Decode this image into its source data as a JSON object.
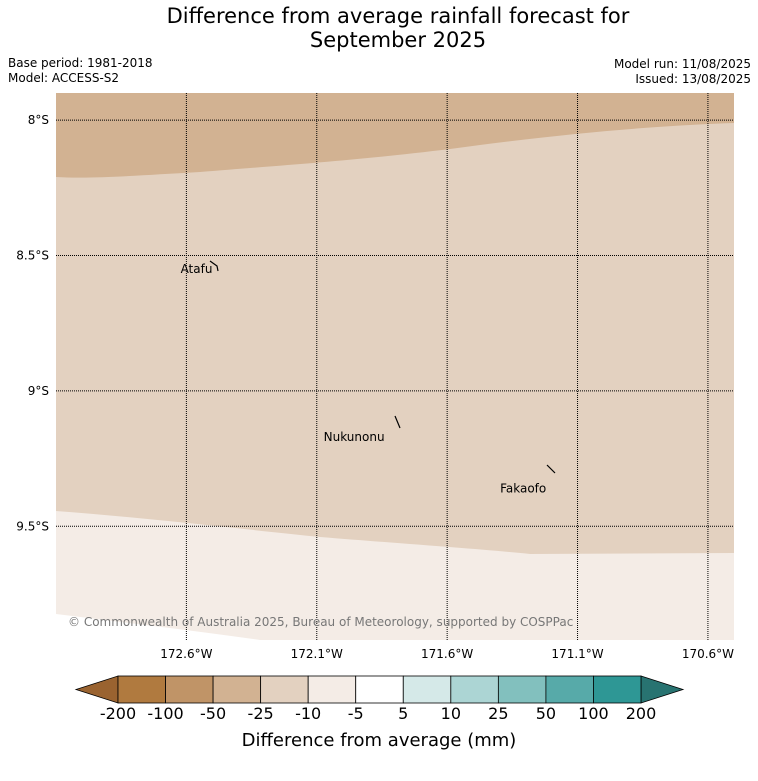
{
  "title": {
    "line1": "Difference from average rainfall forecast for",
    "line2": "September 2025"
  },
  "meta": {
    "base_period": "Base period: 1981-2018",
    "model": "Model: ACCESS-S2",
    "model_run": "Model run: 11/08/2025",
    "issued": "Issued: 13/08/2025"
  },
  "map": {
    "lat_range": [
      -9.92,
      -7.9
    ],
    "lon_range": [
      -173.1,
      -170.5
    ],
    "lat_ticks": [
      {
        "value": -8.0,
        "label": "8°S"
      },
      {
        "value": -8.5,
        "label": "8.5°S"
      },
      {
        "value": -9.0,
        "label": "9°S"
      },
      {
        "value": -9.5,
        "label": "9.5°S"
      }
    ],
    "lon_ticks": [
      {
        "value": -172.6,
        "label": "172.6°W"
      },
      {
        "value": -172.1,
        "label": "172.1°W"
      },
      {
        "value": -171.6,
        "label": "171.6°W"
      },
      {
        "value": -171.1,
        "label": "171.1°W"
      },
      {
        "value": -170.6,
        "label": "170.6°W"
      }
    ],
    "places": [
      {
        "name": "Atafu",
        "lon": -172.5,
        "lat": -8.55
      },
      {
        "name": "Nukunonu",
        "lon": -171.84,
        "lat": -9.17
      },
      {
        "name": "Fakaofo",
        "lon": -171.22,
        "lat": -9.36
      }
    ],
    "copyright": "© Commonwealth of Australia 2025, Bureau of Meteorology, supported by COSPPac",
    "zones": [
      {
        "color": "#d2b292",
        "range": "-50 to -25"
      },
      {
        "color": "#e3d1c0",
        "range": "-25 to -10"
      },
      {
        "color": "#f4ece6",
        "range": "-10 to -5"
      }
    ]
  },
  "colorbar": {
    "title": "Difference from average (mm)",
    "labels": [
      "-200",
      "-100",
      "-50",
      "-25",
      "-10",
      "-5",
      "5",
      "10",
      "25",
      "50",
      "100",
      "200"
    ],
    "under_color": "#9a6330",
    "over_color": "#287371",
    "colors": [
      "#b07a3f",
      "#c09467",
      "#d2b292",
      "#e3d1c0",
      "#f4ece6",
      "#ffffff",
      "#d5e9e8",
      "#acd5d4",
      "#82c0be",
      "#57aaa9",
      "#2e9795"
    ]
  }
}
